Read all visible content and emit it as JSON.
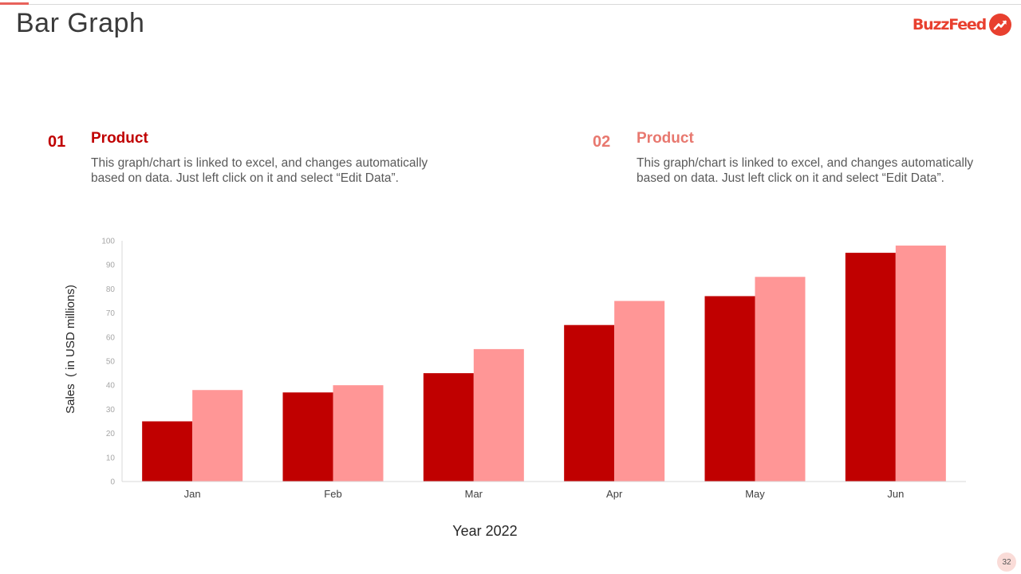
{
  "slide": {
    "title": "Bar Graph",
    "page_number": "32"
  },
  "logo": {
    "text": "BuzzFeed",
    "icon": "trending-arrow-icon"
  },
  "products": [
    {
      "number": "01",
      "title": "Product",
      "description": "This graph/chart is linked to excel, and changes automatically based on data. Just left click on it and select “Edit Data”.",
      "color": "#c00000"
    },
    {
      "number": "02",
      "title": "Product",
      "description": "This graph/chart is linked to excel, and changes automatically based on data. Just left click on it and select “Edit Data”.",
      "color": "#e8786f"
    }
  ],
  "colors": {
    "series1": "#c00000",
    "series2": "#ff9696",
    "accent": "#e8625b"
  },
  "chart_data": {
    "type": "bar",
    "title": "",
    "categories": [
      "Jan",
      "Feb",
      "Mar",
      "Apr",
      "May",
      "Jun"
    ],
    "series": [
      {
        "name": "Product 01",
        "values": [
          25,
          37,
          45,
          65,
          77,
          95
        ]
      },
      {
        "name": "Product 02",
        "values": [
          38,
          40,
          55,
          75,
          85,
          98
        ]
      }
    ],
    "xlabel": "Year 2022",
    "ylabel": "Sales  ( in USD millions)",
    "ylim": [
      0,
      100
    ],
    "yticks": [
      0,
      10,
      20,
      30,
      40,
      50,
      60,
      70,
      80,
      90,
      100
    ],
    "grid": false,
    "legend": "none"
  }
}
